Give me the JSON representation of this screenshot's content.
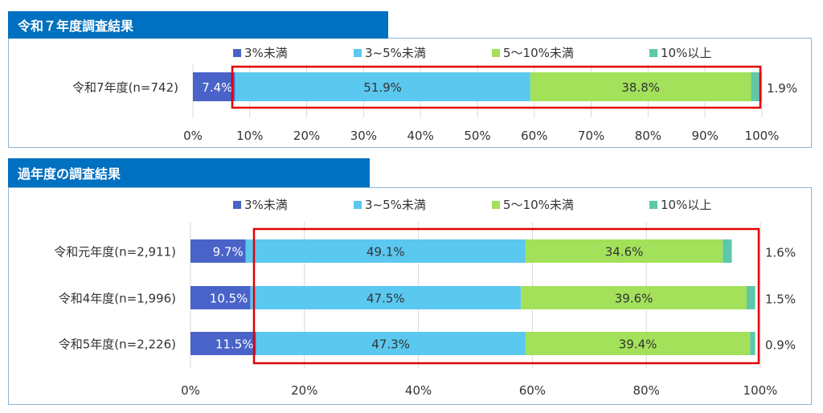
{
  "colors": {
    "lt3": "#4a63c8",
    "3to5": "#5bc8f0",
    "5to10": "#a3e15a",
    "ge10": "#5ec8a8",
    "header": "#0070c0",
    "highlight": "#e00000"
  },
  "chart_data": [
    {
      "type": "bar",
      "stacked": true,
      "orientation": "horizontal",
      "title": "令和７年度調査結果",
      "legend": [
        "3%未満",
        "3~5%未満",
        "5～10%未満",
        "10%以上"
      ],
      "legend_position": "top",
      "categories": [
        "令和7年度(n=742)"
      ],
      "series": [
        {
          "name": "3%未満",
          "values": [
            7.4
          ]
        },
        {
          "name": "3~5%未満",
          "values": [
            51.9
          ]
        },
        {
          "name": "5～10%未満",
          "values": [
            38.8
          ]
        },
        {
          "name": "10%以上",
          "values": [
            1.9
          ]
        }
      ],
      "labels": [
        [
          "7.4%",
          "51.9%",
          "38.8%",
          "1.9%"
        ]
      ],
      "xticks": [
        "0%",
        "10%",
        "20%",
        "30%",
        "40%",
        "50%",
        "60%",
        "70%",
        "80%",
        "90%",
        "100%"
      ],
      "xlim": [
        0,
        100
      ]
    },
    {
      "type": "bar",
      "stacked": true,
      "orientation": "horizontal",
      "title": "過年度の調査結果",
      "legend": [
        "3%未満",
        "3~5%未満",
        "5～10%未満",
        "10%以上"
      ],
      "legend_position": "top",
      "categories": [
        "令和元年度(n=2,911)",
        "令和4年度(n=1,996)",
        "令和5年度(n=2,226)"
      ],
      "series": [
        {
          "name": "3%未満",
          "values": [
            9.7,
            10.5,
            11.5
          ]
        },
        {
          "name": "3~5%未満",
          "values": [
            49.1,
            47.5,
            47.3
          ]
        },
        {
          "name": "5～10%未満",
          "values": [
            34.6,
            39.6,
            39.4
          ]
        },
        {
          "name": "10%以上",
          "values": [
            1.6,
            1.5,
            0.9
          ]
        }
      ],
      "labels": [
        [
          "9.7%",
          "49.1%",
          "34.6%",
          "1.6%"
        ],
        [
          "10.5%",
          "47.5%",
          "39.6%",
          "1.5%"
        ],
        [
          "11.5%",
          "47.3%",
          "39.4%",
          "0.9%"
        ]
      ],
      "xticks": [
        "0%",
        "20%",
        "40%",
        "60%",
        "80%",
        "100%"
      ],
      "xlim": [
        0,
        100
      ]
    }
  ]
}
